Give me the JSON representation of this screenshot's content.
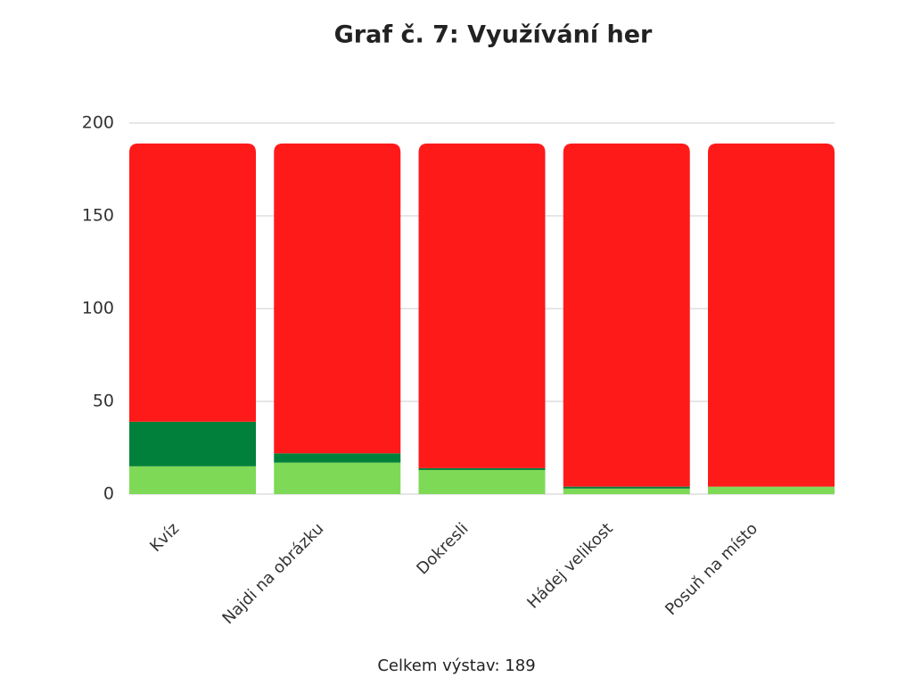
{
  "chart_data": {
    "type": "stacked_bar",
    "title": "Graf č. 7: Využívání her",
    "categories": [
      "Kvíz",
      "Najdi na obrázku",
      "Dokresli",
      "Hádej velikost",
      "Posuň na místo"
    ],
    "series": [
      {
        "color": "#7ed957",
        "values": [
          15,
          17,
          13,
          3,
          4
        ]
      },
      {
        "color": "#00803a",
        "values": [
          24,
          5,
          1,
          1,
          0
        ]
      },
      {
        "color": "#ff1a1a",
        "values": [
          150,
          167,
          175,
          185,
          185
        ]
      }
    ],
    "ylim": [
      0,
      200
    ],
    "yticks": [
      0,
      50,
      100,
      150,
      200
    ],
    "grid": true,
    "annotation": "Celkem výstav: 189"
  }
}
